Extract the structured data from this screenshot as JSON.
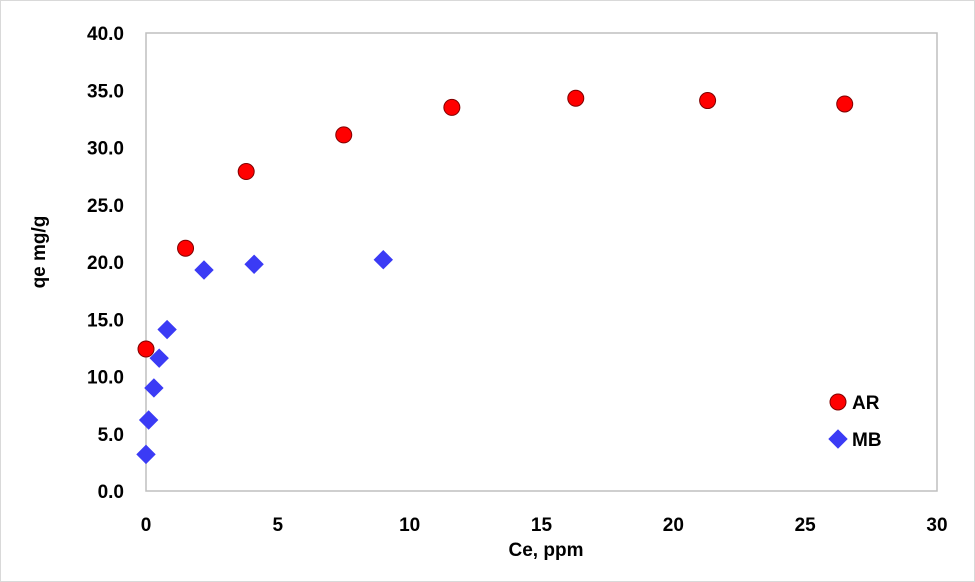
{
  "chart_data": {
    "type": "scatter",
    "title": "",
    "xlabel": "Ce, ppm",
    "ylabel": "qe mg/g",
    "xlim": [
      0,
      30
    ],
    "ylim": [
      0,
      40
    ],
    "x_ticks": [
      0,
      5,
      10,
      15,
      20,
      25,
      30
    ],
    "y_ticks": [
      0,
      5,
      10,
      15,
      20,
      25,
      30,
      35,
      40
    ],
    "x_tick_labels": [
      "0",
      "5",
      "10",
      "15",
      "20",
      "25",
      "30"
    ],
    "y_tick_labels": [
      "0.0",
      "5.0",
      "10.0",
      "15.0",
      "20.0",
      "25.0",
      "30.0",
      "35.0",
      "40.0"
    ],
    "grid": false,
    "legend_position": "bottom-right",
    "series": [
      {
        "name": "AR",
        "marker": "circle",
        "color": "#ff0000",
        "stroke": "#7f0000",
        "x": [
          0.0,
          1.5,
          3.8,
          7.5,
          11.6,
          16.3,
          21.3,
          26.5
        ],
        "y": [
          12.4,
          21.2,
          27.9,
          31.1,
          33.5,
          34.3,
          34.1,
          33.8
        ]
      },
      {
        "name": "MB",
        "marker": "diamond",
        "color": "#3b3bf5",
        "stroke": "#3b3bf5",
        "x": [
          0.0,
          0.1,
          0.3,
          0.5,
          0.8,
          2.2,
          4.1,
          9.0
        ],
        "y": [
          3.2,
          6.2,
          9.0,
          11.6,
          14.1,
          19.3,
          19.8,
          20.2
        ]
      }
    ]
  }
}
